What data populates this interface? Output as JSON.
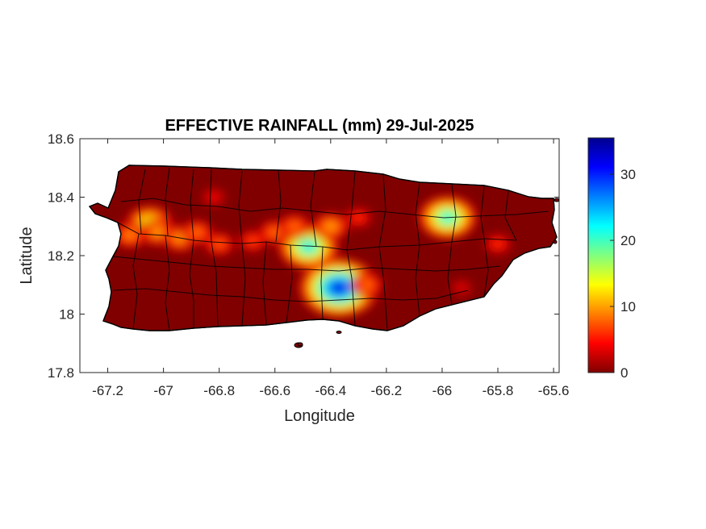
{
  "chart_data": {
    "type": "heatmap",
    "title": "EFFECTIVE RAINFALL (mm) 29-Jul-2025",
    "xlabel": "Longitude",
    "ylabel": "Latitude",
    "xlim": [
      -67.3,
      -65.58
    ],
    "ylim": [
      17.8,
      18.6
    ],
    "xticks": [
      -67.2,
      -67,
      -66.8,
      -66.6,
      -66.4,
      -66.2,
      -66,
      -65.8,
      -65.6
    ],
    "xtick_labels": [
      "-67.2",
      "-67",
      "-66.8",
      "-66.6",
      "-66.4",
      "-66.2",
      "-66",
      "-65.8",
      "-65.6"
    ],
    "yticks": [
      17.8,
      18,
      18.2,
      18.4,
      18.6
    ],
    "ytick_labels": [
      "17.8",
      "18",
      "18.2",
      "18.4",
      "18.6"
    ],
    "colorbar": {
      "colormap": "jet",
      "range": [
        0,
        35.5
      ],
      "ticks": [
        0,
        10,
        20,
        30
      ],
      "tick_labels": [
        "0",
        "10",
        "20",
        "30"
      ]
    },
    "grid": false,
    "rain_cells": [
      {
        "lon": -66.37,
        "lat": 18.09,
        "peak_mm": 35
      },
      {
        "lon": -66.48,
        "lat": 18.23,
        "peak_mm": 25
      },
      {
        "lon": -65.98,
        "lat": 18.33,
        "peak_mm": 24
      },
      {
        "lon": -67.05,
        "lat": 18.31,
        "peak_mm": 18
      },
      {
        "lon": -67.02,
        "lat": 18.28,
        "peak_mm": 12
      },
      {
        "lon": -66.94,
        "lat": 18.26,
        "peak_mm": 12
      },
      {
        "lon": -67.12,
        "lat": 18.27,
        "peak_mm": 11
      },
      {
        "lon": -66.88,
        "lat": 18.28,
        "peak_mm": 10
      },
      {
        "lon": -66.8,
        "lat": 18.24,
        "peak_mm": 9
      },
      {
        "lon": -66.6,
        "lat": 18.28,
        "peak_mm": 10
      },
      {
        "lon": -66.68,
        "lat": 18.25,
        "peak_mm": 8
      },
      {
        "lon": -66.53,
        "lat": 18.3,
        "peak_mm": 10
      },
      {
        "lon": -66.4,
        "lat": 18.3,
        "peak_mm": 12
      },
      {
        "lon": -66.3,
        "lat": 18.33,
        "peak_mm": 7
      },
      {
        "lon": -66.27,
        "lat": 18.1,
        "peak_mm": 10
      },
      {
        "lon": -65.8,
        "lat": 18.24,
        "peak_mm": 7
      },
      {
        "lon": -66.82,
        "lat": 18.4,
        "peak_mm": 5
      },
      {
        "lon": -65.93,
        "lat": 18.09,
        "peak_mm": 4
      }
    ]
  }
}
